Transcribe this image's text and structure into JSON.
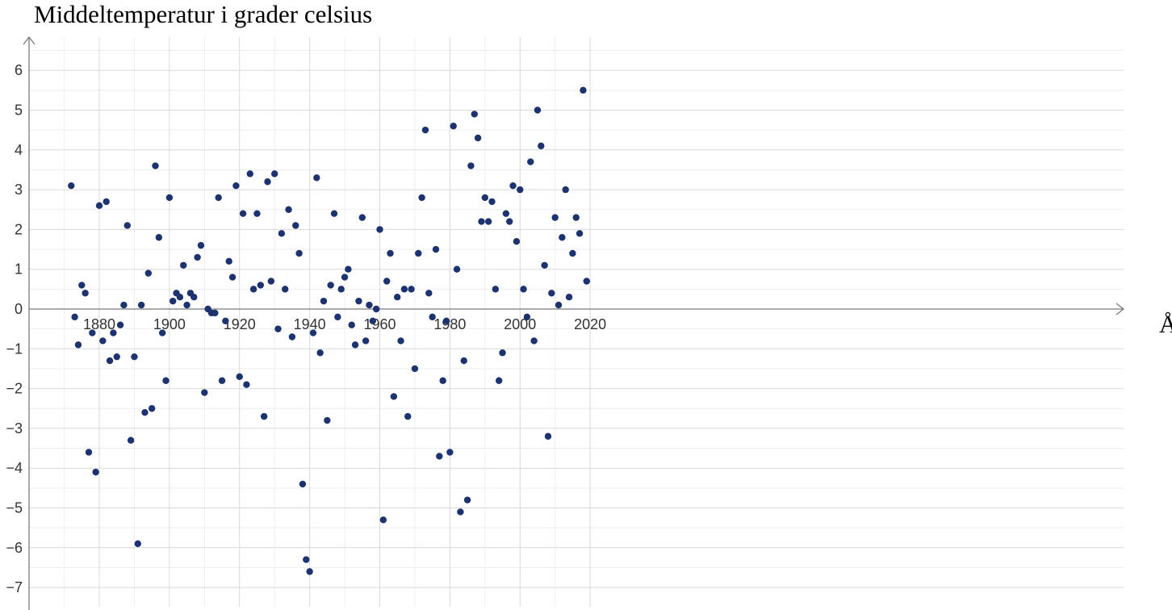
{
  "chart_data": {
    "type": "scatter",
    "title": "Middeltemperatur i grader celsius",
    "xlabel": "År",
    "ylabel": "",
    "xlim": [
      1869,
      2025
    ],
    "ylim": [
      -7.3,
      6.7
    ],
    "grid": true,
    "x_ticks": [
      "1880",
      "1900",
      "1920",
      "1940",
      "1960",
      "1980",
      "2000",
      "2020"
    ],
    "y_ticks": [
      "6",
      "5",
      "4",
      "3",
      "2",
      "1",
      "0",
      "−1",
      "−2",
      "−3",
      "−4",
      "−5",
      "−6",
      "−7"
    ],
    "points": [
      [
        1872,
        3.1
      ],
      [
        1873,
        -0.2
      ],
      [
        1874,
        -0.9
      ],
      [
        1875,
        0.6
      ],
      [
        1876,
        0.4
      ],
      [
        1877,
        -3.6
      ],
      [
        1878,
        -0.6
      ],
      [
        1879,
        -4.1
      ],
      [
        1880,
        2.6
      ],
      [
        1881,
        -0.8
      ],
      [
        1882,
        2.7
      ],
      [
        1883,
        -1.3
      ],
      [
        1884,
        -0.6
      ],
      [
        1885,
        -1.2
      ],
      [
        1886,
        -0.4
      ],
      [
        1887,
        0.1
      ],
      [
        1888,
        2.1
      ],
      [
        1889,
        -3.3
      ],
      [
        1890,
        -1.2
      ],
      [
        1891,
        -5.9
      ],
      [
        1892,
        0.1
      ],
      [
        1893,
        -2.6
      ],
      [
        1894,
        0.9
      ],
      [
        1895,
        -2.5
      ],
      [
        1896,
        3.6
      ],
      [
        1897,
        1.8
      ],
      [
        1898,
        -0.6
      ],
      [
        1899,
        -1.8
      ],
      [
        1900,
        2.8
      ],
      [
        1901,
        0.2
      ],
      [
        1902,
        0.4
      ],
      [
        1903,
        0.3
      ],
      [
        1904,
        1.1
      ],
      [
        1905,
        0.1
      ],
      [
        1906,
        0.4
      ],
      [
        1907,
        0.3
      ],
      [
        1908,
        1.3
      ],
      [
        1909,
        1.6
      ],
      [
        1910,
        -2.1
      ],
      [
        1911,
        0.0
      ],
      [
        1912,
        -0.1
      ],
      [
        1913,
        -0.1
      ],
      [
        1914,
        2.8
      ],
      [
        1915,
        -1.8
      ],
      [
        1916,
        -0.3
      ],
      [
        1917,
        1.2
      ],
      [
        1918,
        0.8
      ],
      [
        1919,
        3.1
      ],
      [
        1920,
        -1.7
      ],
      [
        1921,
        2.4
      ],
      [
        1922,
        -1.9
      ],
      [
        1923,
        3.4
      ],
      [
        1924,
        0.5
      ],
      [
        1925,
        2.4
      ],
      [
        1926,
        0.6
      ],
      [
        1927,
        -2.7
      ],
      [
        1928,
        3.2
      ],
      [
        1929,
        0.7
      ],
      [
        1930,
        3.4
      ],
      [
        1931,
        -0.5
      ],
      [
        1932,
        1.9
      ],
      [
        1933,
        0.5
      ],
      [
        1934,
        2.5
      ],
      [
        1935,
        -0.7
      ],
      [
        1936,
        2.1
      ],
      [
        1937,
        1.4
      ],
      [
        1938,
        -4.4
      ],
      [
        1939,
        -6.3
      ],
      [
        1940,
        -6.6
      ],
      [
        1941,
        -0.6
      ],
      [
        1942,
        3.3
      ],
      [
        1943,
        -1.1
      ],
      [
        1944,
        0.2
      ],
      [
        1945,
        -2.8
      ],
      [
        1946,
        0.6
      ],
      [
        1947,
        2.4
      ],
      [
        1948,
        -0.2
      ],
      [
        1949,
        0.5
      ],
      [
        1950,
        0.8
      ],
      [
        1951,
        1.0
      ],
      [
        1952,
        -0.4
      ],
      [
        1953,
        -0.9
      ],
      [
        1954,
        0.2
      ],
      [
        1955,
        2.3
      ],
      [
        1956,
        -0.8
      ],
      [
        1957,
        0.1
      ],
      [
        1958,
        -0.3
      ],
      [
        1959,
        0.0
      ],
      [
        1960,
        2.0
      ],
      [
        1961,
        -5.3
      ],
      [
        1962,
        0.7
      ],
      [
        1963,
        1.4
      ],
      [
        1964,
        -2.2
      ],
      [
        1965,
        0.3
      ],
      [
        1966,
        -0.8
      ],
      [
        1967,
        0.5
      ],
      [
        1968,
        -2.7
      ],
      [
        1969,
        0.5
      ],
      [
        1970,
        -1.5
      ],
      [
        1971,
        1.4
      ],
      [
        1972,
        2.8
      ],
      [
        1973,
        4.5
      ],
      [
        1974,
        0.4
      ],
      [
        1975,
        -0.2
      ],
      [
        1976,
        1.5
      ],
      [
        1977,
        -3.7
      ],
      [
        1978,
        -1.8
      ],
      [
        1979,
        -0.3
      ],
      [
        1980,
        -3.6
      ],
      [
        1981,
        4.6
      ],
      [
        1982,
        1.0
      ],
      [
        1983,
        -5.1
      ],
      [
        1984,
        -1.3
      ],
      [
        1985,
        -4.8
      ],
      [
        1986,
        3.6
      ],
      [
        1987,
        4.9
      ],
      [
        1988,
        4.3
      ],
      [
        1989,
        2.2
      ],
      [
        1990,
        2.8
      ],
      [
        1991,
        2.2
      ],
      [
        1992,
        2.7
      ],
      [
        1993,
        0.5
      ],
      [
        1994,
        -1.8
      ],
      [
        1995,
        -1.1
      ],
      [
        1996,
        2.4
      ],
      [
        1997,
        2.2
      ],
      [
        1998,
        3.1
      ],
      [
        1999,
        1.7
      ],
      [
        2000,
        3.0
      ],
      [
        2001,
        0.5
      ],
      [
        2002,
        -0.2
      ],
      [
        2003,
        3.7
      ],
      [
        2004,
        -0.8
      ],
      [
        2005,
        5.0
      ],
      [
        2006,
        4.1
      ],
      [
        2007,
        1.1
      ],
      [
        2008,
        -3.2
      ],
      [
        2009,
        0.4
      ],
      [
        2010,
        2.3
      ],
      [
        2011,
        0.1
      ],
      [
        2012,
        1.8
      ],
      [
        2013,
        3.0
      ],
      [
        2014,
        0.3
      ],
      [
        2015,
        1.4
      ],
      [
        2016,
        2.3
      ],
      [
        2017,
        1.9
      ],
      [
        2018,
        5.5
      ],
      [
        2019,
        0.7
      ]
    ],
    "colors": {
      "point": "#1c3370",
      "axis": "#7a7a7a",
      "grid": "#d9d9d9"
    }
  }
}
